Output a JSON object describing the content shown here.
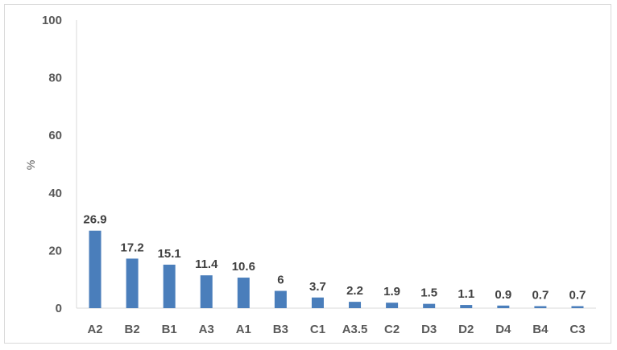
{
  "chart_data": {
    "type": "bar",
    "title": "",
    "xlabel": "",
    "ylabel": "%",
    "ylim": [
      0,
      100
    ],
    "yticks": [
      "0",
      "20",
      "40",
      "60",
      "80",
      "100"
    ],
    "grid": false,
    "legend": "none",
    "bar_color": "#4a7ebb",
    "categories": [
      "A2",
      "B2",
      "B1",
      "A3",
      "A1",
      "B3",
      "C1",
      "A3.5",
      "C2",
      "D3",
      "D2",
      "D4",
      "B4",
      "C3"
    ],
    "values": [
      26.9,
      17.2,
      15.1,
      11.4,
      10.6,
      6,
      3.7,
      2.2,
      1.9,
      1.5,
      1.1,
      0.9,
      0.7,
      0.7
    ],
    "value_labels": [
      "26.9",
      "17.2",
      "15.1",
      "11.4",
      "10.6",
      "6",
      "3.7",
      "2.2",
      "1.9",
      "1.5",
      "1.1",
      "0.9",
      "0.7",
      "0.7"
    ]
  }
}
